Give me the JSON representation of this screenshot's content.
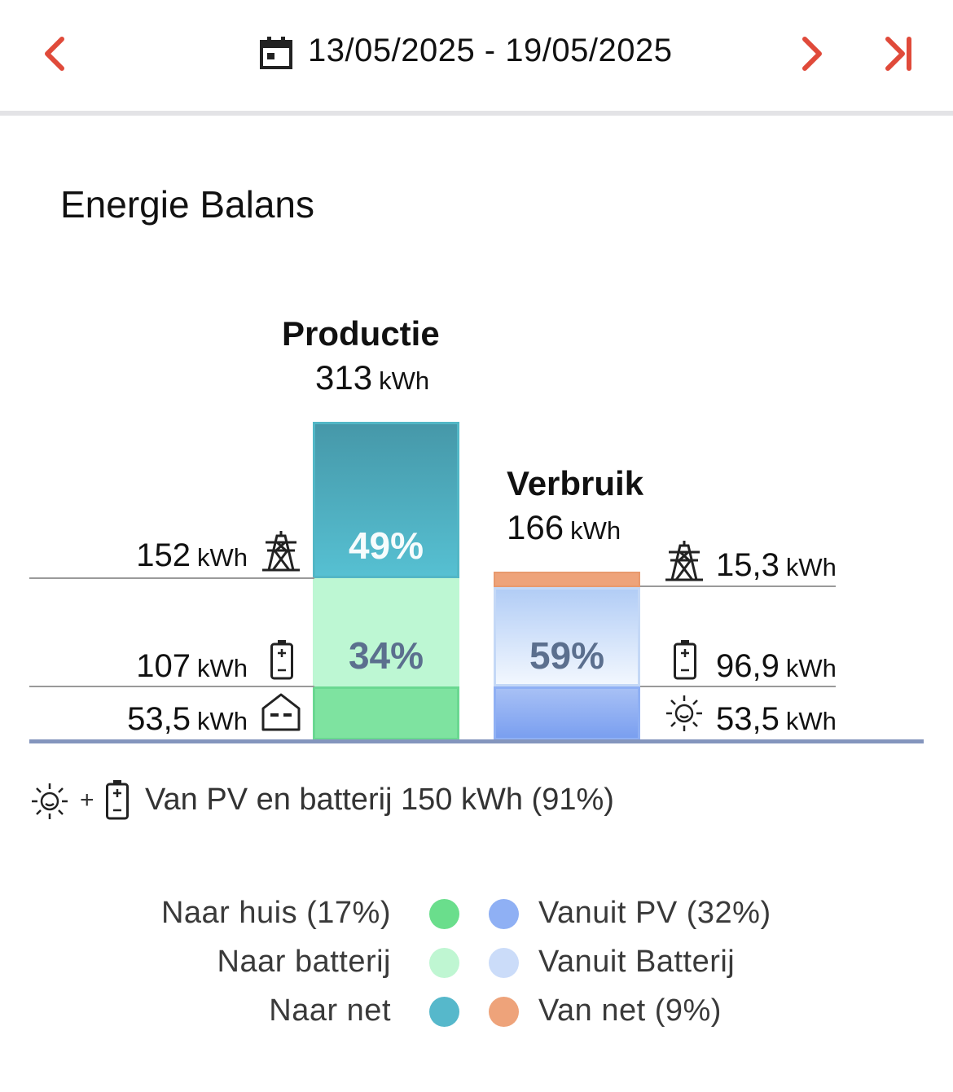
{
  "header": {
    "date_range": "13/05/2025 - 19/05/2025",
    "icons": [
      "chevron-left-icon",
      "calendar-icon",
      "chevron-right-icon",
      "skip-to-end-icon"
    ],
    "accent_color": "#e04a3a"
  },
  "section_title": "Energie Balans",
  "productie": {
    "title": "Productie",
    "total_value": "313",
    "total_unit": "kWh",
    "segments": [
      {
        "key": "naar_net",
        "percent_label": "49%",
        "value": "152",
        "unit": "kWh",
        "icon": "power-pylon-icon",
        "color": "#4fb3c8"
      },
      {
        "key": "naar_batterij",
        "percent_label": "34%",
        "value": "107",
        "unit": "kWh",
        "icon": "battery-icon",
        "color": "#bdf7d3"
      },
      {
        "key": "naar_huis",
        "percent_label": "",
        "value": "53,5",
        "unit": "kWh",
        "icon": "house-icon",
        "color": "#7ee3a0"
      }
    ]
  },
  "verbruik": {
    "title": "Verbruik",
    "total_value": "166",
    "total_unit": "kWh",
    "segments": [
      {
        "key": "van_net",
        "percent_label": "",
        "value": "15,3",
        "unit": "kWh",
        "icon": "power-pylon-icon",
        "color": "#eea37a"
      },
      {
        "key": "vanuit_batterij",
        "percent_label": "59%",
        "value": "96,9",
        "unit": "kWh",
        "icon": "battery-icon",
        "color": "#cddff8"
      },
      {
        "key": "vanuit_pv",
        "percent_label": "",
        "value": "53,5",
        "unit": "kWh",
        "icon": "sun-icon",
        "color": "#8fb0f4"
      }
    ]
  },
  "footnote": {
    "plus": "+",
    "text": "Van PV en batterij 150 kWh (91%)"
  },
  "legend": {
    "left": [
      {
        "label": "Naar huis (17%)",
        "color": "#6ade8c"
      },
      {
        "label": "Naar batterij",
        "color": "#bff6d2"
      },
      {
        "label": "Naar net",
        "color": "#56b8cb"
      }
    ],
    "right": [
      {
        "label": "Vanuit PV (32%)",
        "color": "#8fb0f4"
      },
      {
        "label": "Vanuit Batterij",
        "color": "#cbdcf9"
      },
      {
        "label": "Van net (9%)",
        "color": "#eea37a"
      }
    ]
  }
}
